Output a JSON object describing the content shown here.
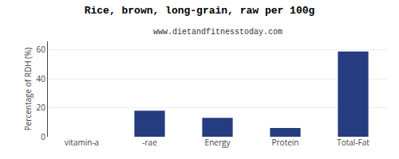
{
  "chart_data": {
    "type": "bar",
    "title": "Rice, brown, long-grain, raw per 100g",
    "subtitle": "www.dietandfitnesstoday.com",
    "ylabel": "Percentage of RDH (%)",
    "categories": [
      "vitamin-a",
      "-rae",
      "Energy",
      "Protein",
      "Total-Fat"
    ],
    "values": [
      0,
      18,
      13,
      6,
      59
    ],
    "color": "#253d7f",
    "ylim": [
      0,
      66
    ],
    "yticks": [
      0,
      20,
      40,
      60
    ],
    "grid": true
  }
}
